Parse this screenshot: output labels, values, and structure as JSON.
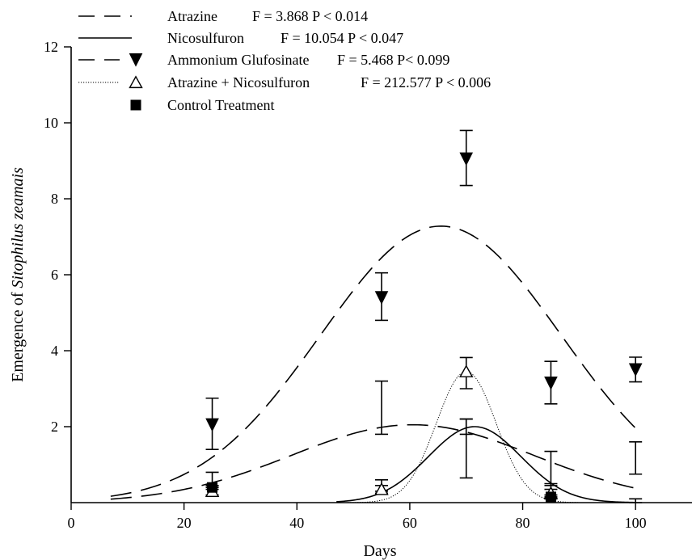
{
  "chart_data": {
    "type": "line",
    "xlabel": "Days",
    "ylabel_prefix": "Emergence of ",
    "ylabel_italic": "Sitophilus zeamais",
    "xlim": [
      0,
      110
    ],
    "ylim": [
      0,
      12
    ],
    "xticks": [
      0,
      20,
      40,
      60,
      80,
      100
    ],
    "yticks": [
      2,
      4,
      6,
      8,
      10,
      12
    ],
    "grid": false,
    "legend_position": "top-left",
    "series": [
      {
        "name": "Atrazine",
        "stats": "F = 3.868   P < 0.014",
        "line_style": "long-dash",
        "marker": "none",
        "curve": {
          "type": "gaussian",
          "peak": 2.05,
          "center": 60.5,
          "sigma": 21.5,
          "x_range": [
            7,
            100
          ]
        },
        "points": [
          {
            "x": 25,
            "y": 0.6,
            "err_low": 0.45,
            "err_high": 0.8
          },
          {
            "x": 55,
            "y": 2.5,
            "err_low": 1.8,
            "err_high": 3.2
          },
          {
            "x": 70,
            "y": 1.4,
            "err_low": 0.65,
            "err_high": 2.2
          },
          {
            "x": 85,
            "y": 0.9,
            "err_low": 0.45,
            "err_high": 1.35
          },
          {
            "x": 100,
            "y": 1.15,
            "err_low": 0.75,
            "err_high": 1.6
          }
        ]
      },
      {
        "name": "Nicosulfuron",
        "stats": "F = 10.054   P < 0.047",
        "line_style": "solid",
        "marker": "none",
        "curve": {
          "type": "gaussian",
          "peak": 2.0,
          "center": 71.5,
          "sigma": 8.2,
          "x_range": [
            47,
            100
          ]
        },
        "points": [
          {
            "x": 55,
            "y": 0.45,
            "err_low": 0.3,
            "err_high": 0.6
          },
          {
            "x": 70,
            "y": 2.0,
            "err_low": 1.8,
            "err_high": 2.2
          },
          {
            "x": 85,
            "y": 0.3,
            "err_low": 0.15,
            "err_high": 0.5
          },
          {
            "x": 100,
            "y": 0.05,
            "err_low": 0.0,
            "err_high": 0.1
          }
        ]
      },
      {
        "name": "Ammonium Glufosinate",
        "stats": "F = 5.468   P< 0.099",
        "line_style": "long-dash",
        "marker": "filled-triangle-down",
        "curve": {
          "type": "gaussian",
          "peak": 7.28,
          "center": 65.5,
          "sigma": 21.3,
          "x_range": [
            7,
            100
          ]
        },
        "points": [
          {
            "x": 25,
            "y": 2.05,
            "err_low": 1.4,
            "err_high": 2.75
          },
          {
            "x": 55,
            "y": 5.4,
            "err_low": 4.8,
            "err_high": 6.05
          },
          {
            "x": 70,
            "y": 9.05,
            "err_low": 8.35,
            "err_high": 9.8
          },
          {
            "x": 85,
            "y": 3.15,
            "err_low": 2.6,
            "err_high": 3.72
          },
          {
            "x": 100,
            "y": 3.5,
            "err_low": 3.18,
            "err_high": 3.83
          }
        ]
      },
      {
        "name": "Atrazine + Nicosulfuron",
        "stats": "F = 212.577   P < 0.006",
        "line_style": "dotted",
        "marker": "open-triangle-up",
        "curve": {
          "type": "gaussian",
          "peak": 3.45,
          "center": 70,
          "sigma": 5.3,
          "x_range": [
            46,
            90
          ]
        },
        "points": [
          {
            "x": 25,
            "y": 0.3,
            "err_low": 0.2,
            "err_high": 0.4
          },
          {
            "x": 55,
            "y": 0.35,
            "err_low": 0.25,
            "err_high": 0.45
          },
          {
            "x": 70,
            "y": 3.45,
            "err_low": 3.0,
            "err_high": 3.82
          },
          {
            "x": 85,
            "y": 0.25,
            "err_low": 0.1,
            "err_high": 0.35
          }
        ]
      },
      {
        "name": "Control Treatment",
        "stats": "",
        "line_style": "none",
        "marker": "filled-square",
        "points": [
          {
            "x": 25,
            "y": 0.4,
            "err_low": 0.35,
            "err_high": 0.45
          },
          {
            "x": 85,
            "y": 0.15,
            "err_low": 0.1,
            "err_high": 0.2
          }
        ]
      }
    ]
  }
}
